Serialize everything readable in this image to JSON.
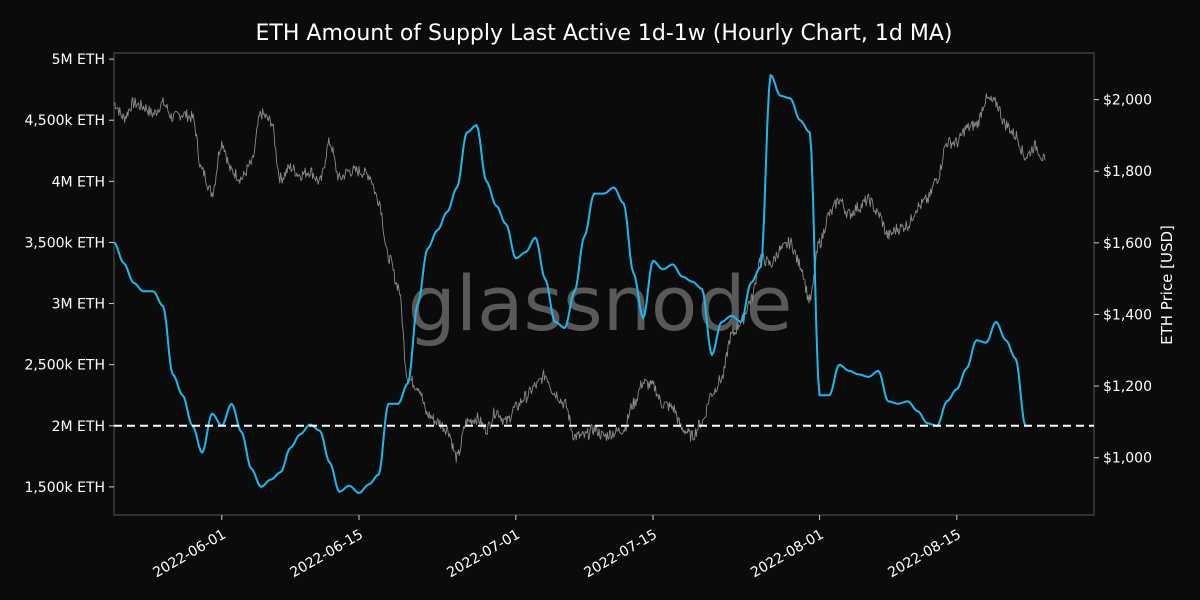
{
  "chart_data": {
    "type": "line",
    "title": "ETH Amount of Supply Last Active 1d-1w (Hourly Chart, 1d MA)",
    "watermark": "glassnode",
    "xlabel": "",
    "ylabel_left": "",
    "ylabel_right": "ETH Price [USD]",
    "x_tick_labels": [
      "2022-06-01",
      "2022-06-15",
      "2022-07-01",
      "2022-07-15",
      "2022-08-01",
      "2022-08-15"
    ],
    "x_tick_dates": [
      "2022-06-01",
      "2022-06-15",
      "2022-07-01",
      "2022-07-15",
      "2022-08-01",
      "2022-08-15"
    ],
    "x_range": [
      "2022-05-21",
      "2022-08-29"
    ],
    "left_axis": {
      "ticks": [
        1500000,
        2000000,
        2500000,
        3000000,
        3500000,
        4000000,
        4500000,
        5000000
      ],
      "tick_labels": [
        "1,500k ETH",
        "2M ETH",
        "2,500k ETH",
        "3M ETH",
        "3,500k ETH",
        "4M ETH",
        "4,500k ETH",
        "5M ETH"
      ],
      "range": [
        1270000,
        5050000
      ]
    },
    "right_axis": {
      "ticks": [
        1000,
        1200,
        1400,
        1600,
        1800,
        2000
      ],
      "tick_labels": [
        "$1,000",
        "$1,200",
        "$1,400",
        "$1,600",
        "$1,800",
        "$2,000"
      ],
      "range": [
        840,
        2130
      ]
    },
    "reference_line": {
      "value": 2000000,
      "style": "dashed",
      "color": "#ffffff"
    },
    "series": [
      {
        "axis": "left",
        "color": "#1fb8ee",
        "points": [
          [
            "2022-05-21",
            3500000
          ],
          [
            "2022-05-22",
            3330000
          ],
          [
            "2022-05-23",
            3170000
          ],
          [
            "2022-05-24",
            3100000
          ],
          [
            "2022-05-25",
            3100000
          ],
          [
            "2022-05-26",
            2980000
          ],
          [
            "2022-05-27",
            2420000
          ],
          [
            "2022-05-28",
            2250000
          ],
          [
            "2022-05-29",
            2000000
          ],
          [
            "2022-05-30",
            1780000
          ],
          [
            "2022-05-31",
            2100000
          ],
          [
            "2022-06-01",
            2000000
          ],
          [
            "2022-06-02",
            2180000
          ],
          [
            "2022-06-03",
            1950000
          ],
          [
            "2022-06-04",
            1650000
          ],
          [
            "2022-06-05",
            1500000
          ],
          [
            "2022-06-06",
            1560000
          ],
          [
            "2022-06-07",
            1620000
          ],
          [
            "2022-06-08",
            1820000
          ],
          [
            "2022-06-09",
            1930000
          ],
          [
            "2022-06-10",
            2010000
          ],
          [
            "2022-06-11",
            1960000
          ],
          [
            "2022-06-12",
            1700000
          ],
          [
            "2022-06-13",
            1460000
          ],
          [
            "2022-06-14",
            1510000
          ],
          [
            "2022-06-15",
            1450000
          ],
          [
            "2022-06-16",
            1520000
          ],
          [
            "2022-06-17",
            1600000
          ],
          [
            "2022-06-18",
            2180000
          ],
          [
            "2022-06-19",
            2180000
          ],
          [
            "2022-06-20",
            2350000
          ],
          [
            "2022-06-21",
            3000000
          ],
          [
            "2022-06-22",
            3450000
          ],
          [
            "2022-06-23",
            3600000
          ],
          [
            "2022-06-24",
            3750000
          ],
          [
            "2022-06-25",
            3950000
          ],
          [
            "2022-06-26",
            4400000
          ],
          [
            "2022-06-27",
            4460000
          ],
          [
            "2022-06-28",
            4000000
          ],
          [
            "2022-06-29",
            3800000
          ],
          [
            "2022-06-30",
            3650000
          ],
          [
            "2022-07-01",
            3370000
          ],
          [
            "2022-07-02",
            3420000
          ],
          [
            "2022-07-03",
            3540000
          ],
          [
            "2022-07-04",
            3200000
          ],
          [
            "2022-07-05",
            2850000
          ],
          [
            "2022-07-06",
            2800000
          ],
          [
            "2022-07-07",
            3100000
          ],
          [
            "2022-07-08",
            3550000
          ],
          [
            "2022-07-09",
            3900000
          ],
          [
            "2022-07-10",
            3900000
          ],
          [
            "2022-07-11",
            3950000
          ],
          [
            "2022-07-12",
            3820000
          ],
          [
            "2022-07-13",
            3250000
          ],
          [
            "2022-07-14",
            2880000
          ],
          [
            "2022-07-15",
            3350000
          ],
          [
            "2022-07-16",
            3280000
          ],
          [
            "2022-07-17",
            3320000
          ],
          [
            "2022-07-18",
            3220000
          ],
          [
            "2022-07-19",
            3180000
          ],
          [
            "2022-07-20",
            3120000
          ],
          [
            "2022-07-21",
            2580000
          ],
          [
            "2022-07-22",
            2850000
          ],
          [
            "2022-07-23",
            2900000
          ],
          [
            "2022-07-24",
            2850000
          ],
          [
            "2022-07-25",
            3170000
          ],
          [
            "2022-07-26",
            3300000
          ],
          [
            "2022-07-27",
            4870000
          ],
          [
            "2022-07-28",
            4700000
          ],
          [
            "2022-07-29",
            4680000
          ],
          [
            "2022-07-30",
            4500000
          ],
          [
            "2022-07-31",
            4400000
          ],
          [
            "2022-08-01",
            2250000
          ],
          [
            "2022-08-02",
            2250000
          ],
          [
            "2022-08-03",
            2500000
          ],
          [
            "2022-08-04",
            2450000
          ],
          [
            "2022-08-05",
            2420000
          ],
          [
            "2022-08-06",
            2400000
          ],
          [
            "2022-08-07",
            2450000
          ],
          [
            "2022-08-08",
            2200000
          ],
          [
            "2022-08-09",
            2180000
          ],
          [
            "2022-08-10",
            2200000
          ],
          [
            "2022-08-11",
            2120000
          ],
          [
            "2022-08-12",
            2020000
          ],
          [
            "2022-08-13",
            2000000
          ],
          [
            "2022-08-14",
            2200000
          ],
          [
            "2022-08-15",
            2300000
          ],
          [
            "2022-08-16",
            2470000
          ],
          [
            "2022-08-17",
            2700000
          ],
          [
            "2022-08-18",
            2680000
          ],
          [
            "2022-08-19",
            2850000
          ],
          [
            "2022-08-20",
            2700000
          ],
          [
            "2022-08-21",
            2550000
          ],
          [
            "2022-08-22",
            2000000
          ]
        ]
      },
      {
        "axis": "right",
        "color": "#8a8a8a",
        "points": [
          [
            "2022-05-21",
            1990
          ],
          [
            "2022-05-22",
            1950
          ],
          [
            "2022-05-23",
            1990
          ],
          [
            "2022-05-24",
            1980
          ],
          [
            "2022-05-25",
            1960
          ],
          [
            "2022-05-26",
            1990
          ],
          [
            "2022-05-27",
            1950
          ],
          [
            "2022-05-28",
            1960
          ],
          [
            "2022-05-29",
            1950
          ],
          [
            "2022-05-30",
            1800
          ],
          [
            "2022-05-31",
            1740
          ],
          [
            "2022-06-01",
            1880
          ],
          [
            "2022-06-02",
            1800
          ],
          [
            "2022-06-03",
            1780
          ],
          [
            "2022-06-04",
            1820
          ],
          [
            "2022-06-05",
            1960
          ],
          [
            "2022-06-06",
            1940
          ],
          [
            "2022-06-07",
            1780
          ],
          [
            "2022-06-08",
            1810
          ],
          [
            "2022-06-09",
            1790
          ],
          [
            "2022-06-10",
            1800
          ],
          [
            "2022-06-11",
            1770
          ],
          [
            "2022-06-12",
            1880
          ],
          [
            "2022-06-13",
            1780
          ],
          [
            "2022-06-14",
            1800
          ],
          [
            "2022-06-15",
            1800
          ],
          [
            "2022-06-16",
            1790
          ],
          [
            "2022-06-17",
            1720
          ],
          [
            "2022-06-18",
            1560
          ],
          [
            "2022-06-19",
            1480
          ],
          [
            "2022-06-20",
            1220
          ],
          [
            "2022-06-21",
            1200
          ],
          [
            "2022-06-22",
            1120
          ],
          [
            "2022-06-23",
            1100
          ],
          [
            "2022-06-24",
            1080
          ],
          [
            "2022-06-25",
            1000
          ],
          [
            "2022-06-26",
            1100
          ],
          [
            "2022-06-27",
            1110
          ],
          [
            "2022-06-28",
            1080
          ],
          [
            "2022-06-29",
            1130
          ],
          [
            "2022-06-30",
            1100
          ],
          [
            "2022-07-01",
            1140
          ],
          [
            "2022-07-02",
            1170
          ],
          [
            "2022-07-03",
            1200
          ],
          [
            "2022-07-04",
            1230
          ],
          [
            "2022-07-05",
            1180
          ],
          [
            "2022-07-06",
            1150
          ],
          [
            "2022-07-07",
            1060
          ],
          [
            "2022-07-08",
            1060
          ],
          [
            "2022-07-09",
            1080
          ],
          [
            "2022-07-10",
            1060
          ],
          [
            "2022-07-11",
            1070
          ],
          [
            "2022-07-12",
            1080
          ],
          [
            "2022-07-13",
            1150
          ],
          [
            "2022-07-14",
            1210
          ],
          [
            "2022-07-15",
            1200
          ],
          [
            "2022-07-16",
            1150
          ],
          [
            "2022-07-17",
            1140
          ],
          [
            "2022-07-18",
            1080
          ],
          [
            "2022-07-19",
            1060
          ],
          [
            "2022-07-20",
            1100
          ],
          [
            "2022-07-21",
            1180
          ],
          [
            "2022-07-22",
            1220
          ],
          [
            "2022-07-23",
            1340
          ],
          [
            "2022-07-24",
            1380
          ],
          [
            "2022-07-25",
            1440
          ],
          [
            "2022-07-26",
            1560
          ],
          [
            "2022-07-27",
            1540
          ],
          [
            "2022-07-28",
            1580
          ],
          [
            "2022-07-29",
            1600
          ],
          [
            "2022-07-30",
            1540
          ],
          [
            "2022-07-31",
            1440
          ],
          [
            "2022-08-01",
            1600
          ],
          [
            "2022-08-02",
            1680
          ],
          [
            "2022-08-03",
            1720
          ],
          [
            "2022-08-04",
            1680
          ],
          [
            "2022-08-05",
            1700
          ],
          [
            "2022-08-06",
            1720
          ],
          [
            "2022-08-07",
            1680
          ],
          [
            "2022-08-08",
            1620
          ],
          [
            "2022-08-09",
            1640
          ],
          [
            "2022-08-10",
            1650
          ],
          [
            "2022-08-11",
            1700
          ],
          [
            "2022-08-12",
            1720
          ],
          [
            "2022-08-13",
            1780
          ],
          [
            "2022-08-14",
            1880
          ],
          [
            "2022-08-15",
            1880
          ],
          [
            "2022-08-16",
            1920
          ],
          [
            "2022-08-17",
            1930
          ],
          [
            "2022-08-18",
            2000
          ],
          [
            "2022-08-19",
            1990
          ],
          [
            "2022-08-20",
            1930
          ],
          [
            "2022-08-21",
            1900
          ],
          [
            "2022-08-22",
            1840
          ],
          [
            "2022-08-23",
            1870
          ],
          [
            "2022-08-24",
            1830
          ]
        ]
      }
    ],
    "grid": false,
    "legend": "none"
  }
}
